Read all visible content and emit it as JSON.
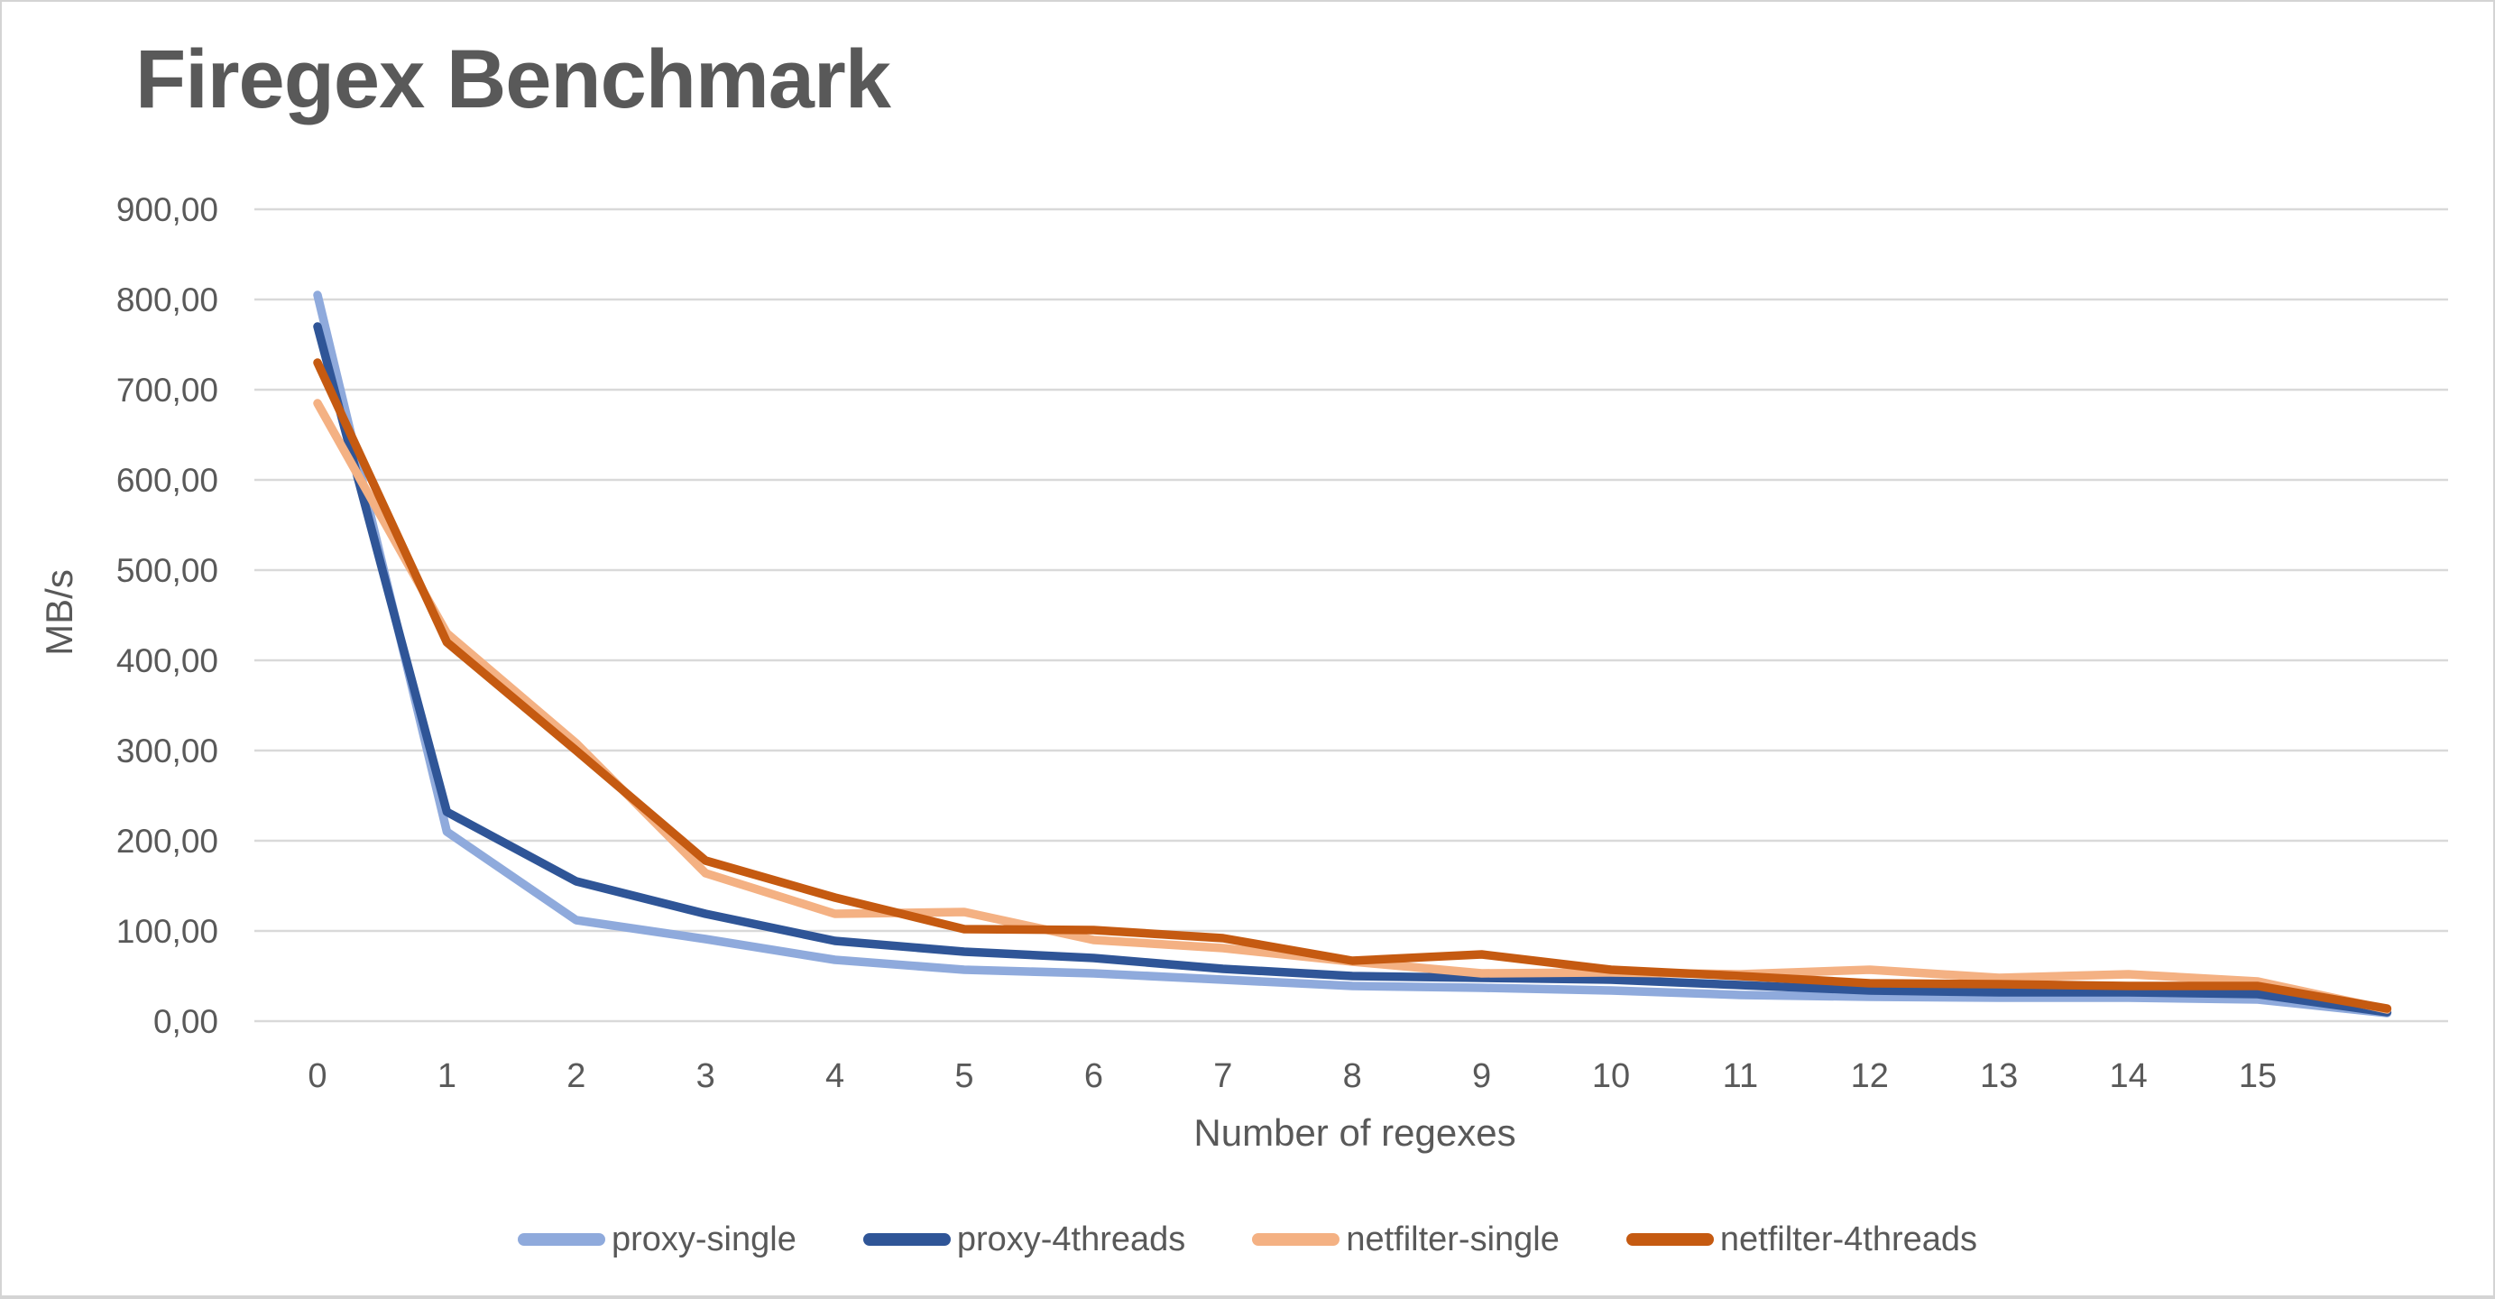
{
  "page": {
    "title": "Firegex Benchmark"
  },
  "colors": {
    "text": "#595959",
    "gridline": "#D9D9D9",
    "background": "#FFFFFF",
    "frame_border": "#D4D4D4"
  },
  "chart_data": {
    "type": "line",
    "title": "Firegex Benchmark",
    "xlabel": "Number of regexes",
    "ylabel": "MB/s",
    "x_tick_labels": [
      "0",
      "1",
      "2",
      "3",
      "4",
      "5",
      "6",
      "7",
      "8",
      "9",
      "10",
      "11",
      "12",
      "13",
      "14",
      "15"
    ],
    "x_values": [
      0,
      1,
      2,
      3,
      4,
      5,
      6,
      7,
      8,
      9,
      10,
      11,
      12,
      13,
      14,
      15,
      16
    ],
    "y_tick_values": [
      0,
      100,
      200,
      300,
      400,
      500,
      600,
      700,
      800,
      900
    ],
    "y_tick_labels": [
      "0,00",
      "100,00",
      "200,00",
      "300,00",
      "400,00",
      "500,00",
      "600,00",
      "700,00",
      "800,00",
      "900,00"
    ],
    "ylim": [
      0,
      900
    ],
    "grid": true,
    "legend_position": "bottom",
    "series": [
      {
        "name": "proxy-single",
        "color": "#8FAADC",
        "values": [
          805,
          210,
          112,
          91,
          68,
          57,
          53,
          46,
          39,
          37,
          34,
          29,
          27,
          26,
          26,
          24,
          9
        ]
      },
      {
        "name": "proxy-4threads",
        "color": "#2F5597",
        "values": [
          770,
          232,
          155,
          119,
          89,
          77,
          70,
          58,
          50,
          48,
          46,
          40,
          34,
          32,
          32,
          30,
          10
        ]
      },
      {
        "name": "netfilter-single",
        "color": "#F4B183",
        "values": [
          685,
          430,
          308,
          164,
          119,
          121,
          90,
          81,
          66,
          53,
          54,
          52,
          57,
          48,
          52,
          44,
          13
        ]
      },
      {
        "name": "netfilter-4threads",
        "color": "#C55A11",
        "values": [
          730,
          420,
          300,
          178,
          137,
          102,
          101,
          92,
          67,
          74,
          57,
          50,
          42,
          41,
          39,
          39,
          14
        ]
      }
    ]
  }
}
